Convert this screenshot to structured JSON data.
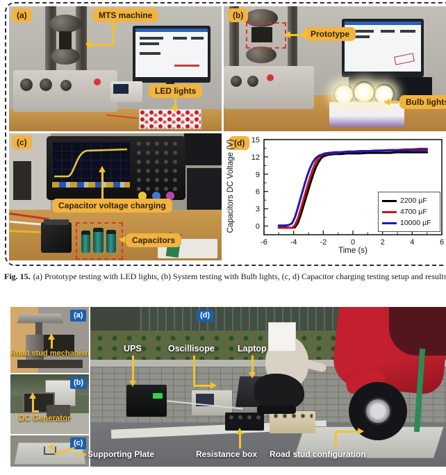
{
  "colors": {
    "callout_bg": "#F2B340",
    "callout_text": "#332507",
    "panel_tag_blue": "#1C5FAD",
    "arrow_yellow": "#F5C12F",
    "series_black": "#000000",
    "series_red": "#CC1414",
    "series_blue": "#1A1AB4"
  },
  "fig1": {
    "tag_a": "(a)",
    "tag_b": "(b)",
    "tag_c": "(c)",
    "tag_d": "(d)",
    "label_mts": "MTS machine",
    "label_led": "LED lights",
    "label_prototype": "Prototype",
    "label_bulb": "Bulb lights",
    "label_charging": "Capacitor voltage charging",
    "label_capacitors": "Capacitors",
    "caption_lead": "Fig. 15.",
    "caption_text": "(a) Prototype testing with LED lights, (b) System testing with Bulb lights, (c, d) Capacitor charging testing setup and results"
  },
  "chart_data": {
    "type": "line",
    "title": "",
    "xlabel": "Time (s)",
    "ylabel": "Capacitors DC Voltage (V)",
    "xlim": [
      -6,
      6
    ],
    "ylim": [
      -1.5,
      15
    ],
    "xticks": [
      -6,
      -4,
      -2,
      0,
      2,
      4,
      6
    ],
    "yticks": [
      0,
      3,
      6,
      9,
      12,
      15
    ],
    "grid": false,
    "legend_position": "right-center",
    "x": [
      -5,
      -4.6,
      -4.3,
      -4.1,
      -3.9,
      -3.7,
      -3.5,
      -3.3,
      -3.1,
      -2.9,
      -2.7,
      -2.5,
      -2.3,
      -2.1,
      -1.9,
      -1.6,
      -1.2,
      -0.8,
      -0.4,
      0,
      0.5,
      1,
      1.5,
      2,
      2.5,
      3,
      3.5,
      4,
      4.5,
      5
    ],
    "series": [
      {
        "name": "2200  µF",
        "color": "#000000",
        "y": [
          -0.2,
          -0.2,
          -0.3,
          -0.3,
          -0.2,
          0.6,
          2.1,
          3.8,
          5.5,
          7.2,
          8.8,
          10.2,
          11.2,
          11.9,
          12.2,
          12.4,
          12.5,
          12.5,
          12.6,
          12.6,
          12.6,
          12.7,
          12.7,
          12.7,
          12.7,
          12.8,
          12.8,
          12.8,
          12.8,
          12.8
        ]
      },
      {
        "name": "4700  µF",
        "color": "#CC1414",
        "y": [
          -0.3,
          -0.3,
          -0.3,
          -0.3,
          0.2,
          1.4,
          3.1,
          4.9,
          6.7,
          8.4,
          9.9,
          11.1,
          11.9,
          12.3,
          12.5,
          12.6,
          12.7,
          12.8,
          12.9,
          12.9,
          13.0,
          13.0,
          13.1,
          13.1,
          13.2,
          13.2,
          13.3,
          13.3,
          13.4,
          13.4
        ]
      },
      {
        "name": "10000 µF",
        "color": "#1A1AB4",
        "y": [
          0.1,
          0.1,
          0.2,
          0.5,
          1.6,
          3.3,
          5.1,
          6.9,
          8.6,
          10.0,
          11.1,
          11.8,
          12.2,
          12.4,
          12.6,
          12.7,
          12.8,
          12.8,
          12.9,
          12.9,
          13.0,
          13.0,
          13.0,
          13.1,
          13.1,
          13.1,
          13.1,
          13.2,
          13.2,
          13.2
        ]
      }
    ]
  },
  "fig2": {
    "tag_a": "(a)",
    "tag_b": "(b)",
    "tag_c": "(c)",
    "tag_d": "(d)",
    "label_road_stud_mech": "Road stud mechanism",
    "label_dc_gen": "DC Generator",
    "label_supporting": "Supporting Plate",
    "label_ups": "UPS",
    "label_osc": "Oscillisope",
    "label_laptop": "Laptop",
    "label_resistance": "Resistance box",
    "label_road_config": "Road stud configuration"
  }
}
